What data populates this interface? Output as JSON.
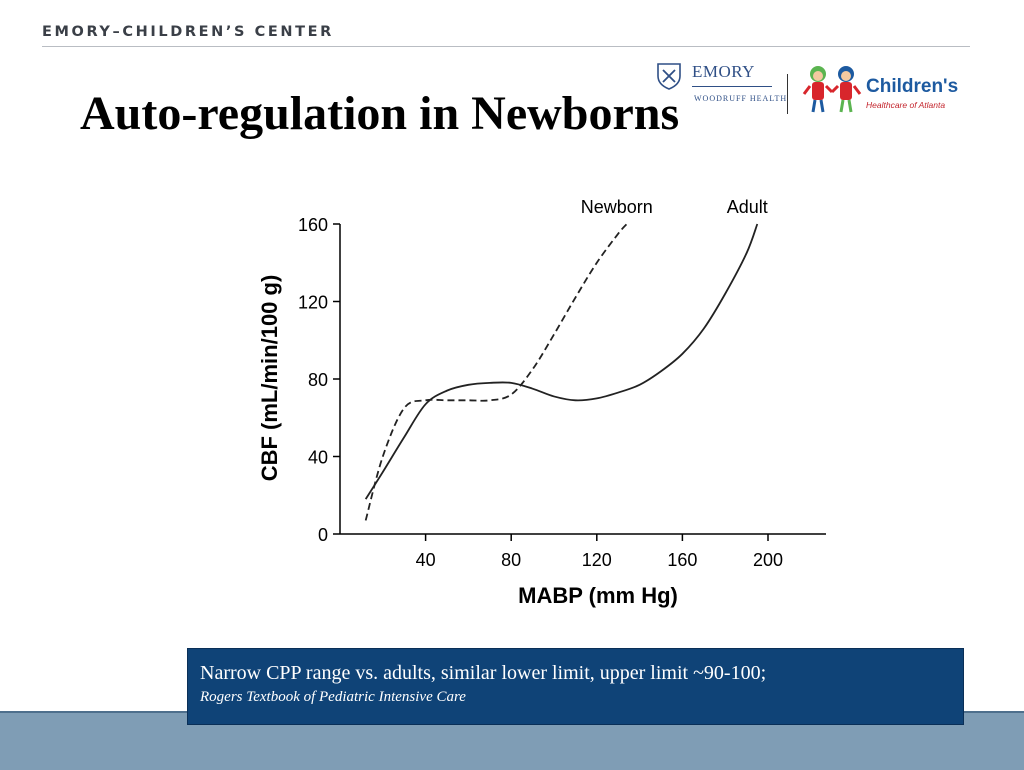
{
  "header": {
    "org_name": "EMORY–CHILDREN’S CENTER"
  },
  "logos": {
    "emory": {
      "word": "EMORY",
      "sub": "WOODRUFF HEALTH",
      "color": "#2f4f86"
    },
    "childrens": {
      "word": "Children's",
      "sub": "Healthcare of Atlanta",
      "color": "#1d5aa0",
      "accent": "#c4262e"
    }
  },
  "slide": {
    "title": "Auto-regulation in Newborns"
  },
  "chart_data": {
    "type": "line",
    "xlabel": "MABP (mm Hg)",
    "ylabel": "CBF (mL/min/100 g)",
    "xlim": [
      0,
      230
    ],
    "ylim": [
      0,
      160
    ],
    "xticks": [
      40,
      80,
      120,
      160,
      200
    ],
    "yticks": [
      0,
      40,
      80,
      120,
      160
    ],
    "grid": false,
    "series": [
      {
        "name": "Newborn",
        "style": "dashed",
        "x": [
          12,
          20,
          30,
          40,
          50,
          60,
          70,
          80,
          90,
          100,
          110,
          120,
          130,
          134
        ],
        "y": [
          7,
          40,
          65,
          69,
          69,
          69,
          69,
          72,
          85,
          103,
          122,
          140,
          155,
          160
        ]
      },
      {
        "name": "Adult",
        "style": "solid",
        "x": [
          12,
          20,
          30,
          40,
          50,
          60,
          70,
          80,
          90,
          100,
          110,
          120,
          130,
          140,
          150,
          160,
          170,
          180,
          190,
          195
        ],
        "y": [
          18,
          32,
          50,
          67,
          74,
          77,
          78,
          78,
          75,
          71,
          69,
          70,
          73,
          77,
          84,
          93,
          106,
          124,
          145,
          160
        ]
      }
    ]
  },
  "note": {
    "text": "Narrow CPP range vs. adults, similar lower limit, upper limit ~90-100;",
    "source": "Rogers Textbook of Pediatric Intensive Care"
  }
}
